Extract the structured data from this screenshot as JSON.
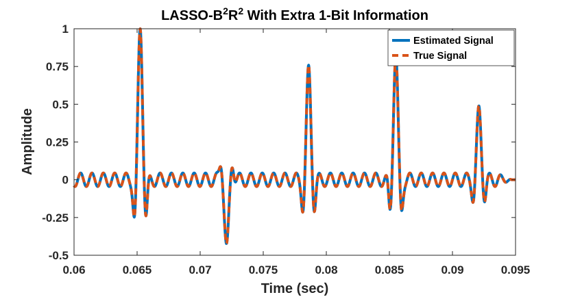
{
  "chart_data": {
    "type": "line",
    "title": {
      "prefix": "LASSO-B",
      "sup1": "2",
      "mid": "R",
      "sup2": "2",
      "suffix": " With Extra 1-Bit Information"
    },
    "xlabel": "Time (sec)",
    "ylabel": "Amplitude",
    "xlim": [
      0.06,
      0.095
    ],
    "ylim": [
      -0.5,
      1.0
    ],
    "xticks": [
      0.06,
      0.065,
      0.07,
      0.075,
      0.08,
      0.085,
      0.09,
      0.095
    ],
    "xtick_labels": [
      "0.06",
      "0.065",
      "0.07",
      "0.075",
      "0.08",
      "0.085",
      "0.09",
      "0.095"
    ],
    "yticks": [
      -0.5,
      -0.25,
      0,
      0.25,
      0.5,
      0.75,
      1
    ],
    "ytick_labels": [
      "-0.5",
      "-0.25",
      "0",
      "0.25",
      "0.5",
      "0.75",
      "1"
    ],
    "grid": false,
    "legend_position": "top-right",
    "components": {
      "pulses": [
        {
          "t": 0.06525,
          "a": 1.0
        },
        {
          "t": 0.0721,
          "a": -0.45
        },
        {
          "t": 0.0786,
          "a": 0.72
        },
        {
          "t": 0.0855,
          "a": 0.82
        },
        {
          "t": 0.0921,
          "a": 0.45
        }
      ],
      "carrier_period": 0.0009,
      "pulse_width": 0.00022,
      "ringing_amplitude": 0.045,
      "taper_start": 0.0935
    },
    "series": [
      {
        "name": "Estimated Signal",
        "color": "#0072BD",
        "style": "solid"
      },
      {
        "name": "True Signal",
        "color": "#D95319",
        "style": "dashed"
      }
    ]
  }
}
